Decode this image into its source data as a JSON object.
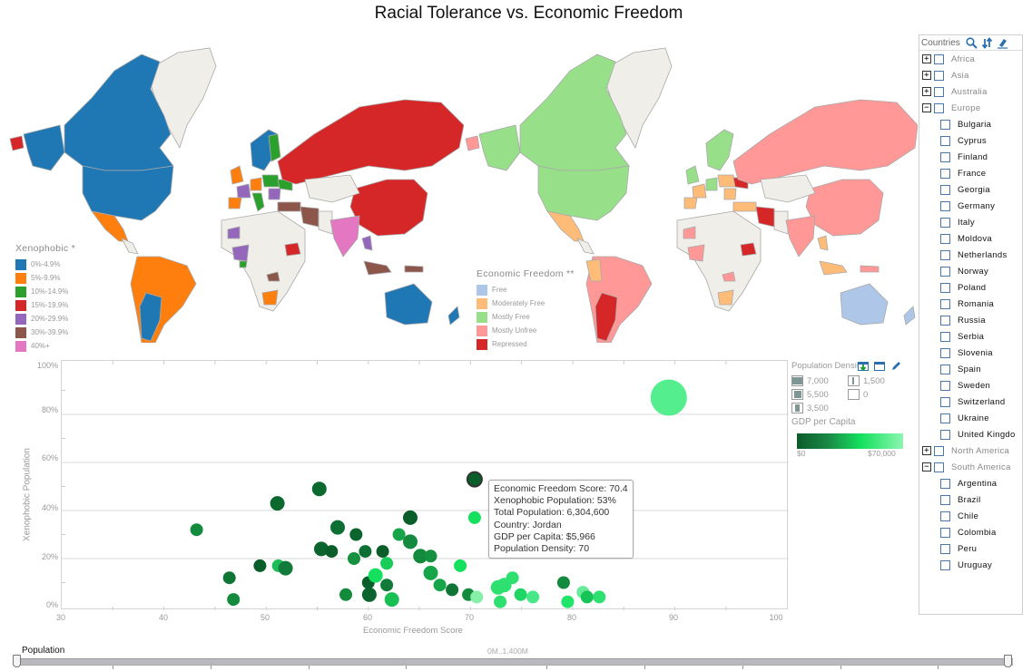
{
  "title": "Racial Tolerance vs. Economic Freedom",
  "maps": {
    "left": {
      "legend_title": "Xenophobic *",
      "legend": [
        {
          "label": "0%-4.9%",
          "color": "#1f77b4"
        },
        {
          "label": "5%-9.9%",
          "color": "#ff7f0e"
        },
        {
          "label": "10%-14.9%",
          "color": "#2ca02c"
        },
        {
          "label": "15%-19.9%",
          "color": "#d62728"
        },
        {
          "label": "20%-29.9%",
          "color": "#9467bd"
        },
        {
          "label": "30%-39.9%",
          "color": "#8c564b"
        },
        {
          "label": "40%+",
          "color": "#e377c2"
        }
      ]
    },
    "right": {
      "legend_title": "Economic Freedom **",
      "legend": [
        {
          "label": "Free",
          "color": "#aec7e8"
        },
        {
          "label": "Moderately Free",
          "color": "#ffbb78"
        },
        {
          "label": "Mostly Free",
          "color": "#98df8a"
        },
        {
          "label": "Mostly Unfree",
          "color": "#ff9896"
        },
        {
          "label": "Repressed",
          "color": "#d62728"
        }
      ]
    },
    "no_data_color": "#f0eee9",
    "border_color": "#a9a9a9"
  },
  "scatter": {
    "ylabel": "Xenophobic Population",
    "xlabel": "Economic Freedom Score",
    "yticks": [
      "100%",
      "80%",
      "60%",
      "40%",
      "20%",
      "0%"
    ],
    "xticks": [
      "30",
      "40",
      "50",
      "60",
      "70",
      "80",
      "90",
      "100"
    ]
  },
  "tooltip": {
    "lines": [
      "Economic Freedom Score: 70.4",
      "Xenophobic Population: 53%",
      "Total Population: 6,304,600",
      "Country: Jordan",
      "GDP per Capita: $5,966",
      "Population Density: 70"
    ]
  },
  "side_legend": {
    "title": "Population Density",
    "density_items": [
      {
        "label": "7,000",
        "fill": 0.9
      },
      {
        "label": "5,500",
        "fill": 0.7
      },
      {
        "label": "3,500",
        "fill": 0.45
      },
      {
        "label": "1,500",
        "fill": 0.25
      },
      {
        "label": "0",
        "fill": 0.08
      }
    ],
    "gdp_title": "GDP per Capita",
    "gdp_min": "$0",
    "gdp_max": "$70,000"
  },
  "panel": {
    "title": "Countries",
    "groups": [
      {
        "label": "Africa",
        "expanded": false,
        "children": []
      },
      {
        "label": "Asia",
        "expanded": false,
        "children": []
      },
      {
        "label": "Australia",
        "expanded": false,
        "children": []
      },
      {
        "label": "Europe",
        "expanded": true,
        "children": [
          "Bulgaria",
          "Cyprus",
          "Finland",
          "France",
          "Georgia",
          "Germany",
          "Italy",
          "Moldova",
          "Netherlands",
          "Norway",
          "Poland",
          "Romania",
          "Russia",
          "Serbia",
          "Slovenia",
          "Spain",
          "Sweden",
          "Switzerland",
          "Ukraine",
          "United Kingdo"
        ]
      },
      {
        "label": "North America",
        "expanded": false,
        "children": []
      },
      {
        "label": "South America",
        "expanded": true,
        "children": [
          "Argentina",
          "Brazil",
          "Chile",
          "Colombia",
          "Peru",
          "Uruguay"
        ]
      }
    ]
  },
  "slider": {
    "label": "Population",
    "range_text": "0M..1,400M"
  },
  "chart_data": [
    {
      "type": "scatter",
      "title": "Racial Tolerance vs. Economic Freedom",
      "xlabel": "Economic Freedom Score",
      "ylabel": "Xenophobic Population",
      "xlim": [
        30,
        100
      ],
      "ylim": [
        0,
        100
      ],
      "grid": true,
      "size_encoding": "Population Density",
      "color_encoding": "GDP per Capita ($0 dark green to $70,000 light green)",
      "highlighted_point": {
        "country": "Jordan",
        "x": 70.4,
        "y": 53,
        "total_population": 6304600,
        "gdp_per_capita": 5966,
        "population_density": 70
      },
      "points": [
        {
          "x": 43.2,
          "y": 32,
          "c": "#148a3f",
          "r": 7
        },
        {
          "x": 46.4,
          "y": 12,
          "c": "#0f7535",
          "r": 7
        },
        {
          "x": 46.8,
          "y": 3,
          "c": "#138a3c",
          "r": 7
        },
        {
          "x": 49.4,
          "y": 17,
          "c": "#0a5e2a",
          "r": 7
        },
        {
          "x": 51.1,
          "y": 43,
          "c": "#0b682e",
          "r": 8
        },
        {
          "x": 51.2,
          "y": 17,
          "c": "#1fbd5a",
          "r": 7
        },
        {
          "x": 51.9,
          "y": 16,
          "c": "#127a3a",
          "r": 8
        },
        {
          "x": 55.2,
          "y": 49,
          "c": "#0b682e",
          "r": 8
        },
        {
          "x": 55.4,
          "y": 24,
          "c": "#0b632d",
          "r": 8
        },
        {
          "x": 56.4,
          "y": 23,
          "c": "#0a5e2a",
          "r": 7
        },
        {
          "x": 57.0,
          "y": 33,
          "c": "#0d6f33",
          "r": 8
        },
        {
          "x": 57.8,
          "y": 5,
          "c": "#138a3c",
          "r": 7
        },
        {
          "x": 58.6,
          "y": 20,
          "c": "#15913f",
          "r": 7
        },
        {
          "x": 58.8,
          "y": 30,
          "c": "#0b632d",
          "r": 7
        },
        {
          "x": 59.7,
          "y": 23,
          "c": "#0d6f33",
          "r": 7
        },
        {
          "x": 60.0,
          "y": 10,
          "c": "#0a5e2a",
          "r": 7
        },
        {
          "x": 60.1,
          "y": 5,
          "c": "#0b632d",
          "r": 8
        },
        {
          "x": 60.7,
          "y": 13,
          "c": "#14e05e",
          "r": 8
        },
        {
          "x": 61.4,
          "y": 23,
          "c": "#0a5e2a",
          "r": 7
        },
        {
          "x": 61.8,
          "y": 18,
          "c": "#18cc5a",
          "r": 7
        },
        {
          "x": 61.8,
          "y": 9,
          "c": "#117a38",
          "r": 7
        },
        {
          "x": 62.3,
          "y": 3,
          "c": "#18c054",
          "r": 8
        },
        {
          "x": 63.0,
          "y": 30,
          "c": "#16a548",
          "r": 7
        },
        {
          "x": 64.1,
          "y": 37,
          "c": "#0a5e2a",
          "r": 8
        },
        {
          "x": 64.1,
          "y": 27,
          "c": "#148a3f",
          "r": 8
        },
        {
          "x": 65.1,
          "y": 21,
          "c": "#138a3c",
          "r": 8
        },
        {
          "x": 66.1,
          "y": 21,
          "c": "#15913f",
          "r": 7
        },
        {
          "x": 66.1,
          "y": 14,
          "c": "#16a548",
          "r": 8
        },
        {
          "x": 67.0,
          "y": 9,
          "c": "#16a548",
          "r": 7
        },
        {
          "x": 68.2,
          "y": 7,
          "c": "#0f7535",
          "r": 7
        },
        {
          "x": 69.0,
          "y": 17,
          "c": "#14e05e",
          "r": 7
        },
        {
          "x": 69.8,
          "y": 5,
          "c": "#138a3c",
          "r": 7
        },
        {
          "x": 70.4,
          "y": 53,
          "c": "#0a5e2a",
          "r": 8
        },
        {
          "x": 70.4,
          "y": 37,
          "c": "#14e05e",
          "r": 7
        },
        {
          "x": 70.6,
          "y": 4,
          "c": "#86f0a8",
          "r": 7
        },
        {
          "x": 72.7,
          "y": 8,
          "c": "#2de070",
          "r": 8
        },
        {
          "x": 72.9,
          "y": 2,
          "c": "#2de070",
          "r": 7
        },
        {
          "x": 73.3,
          "y": 9,
          "c": "#2de070",
          "r": 8
        },
        {
          "x": 74.1,
          "y": 12,
          "c": "#2de070",
          "r": 7
        },
        {
          "x": 74.9,
          "y": 5,
          "c": "#1fd566",
          "r": 7
        },
        {
          "x": 76.1,
          "y": 4,
          "c": "#48e888",
          "r": 7
        },
        {
          "x": 79.1,
          "y": 10,
          "c": "#148a3f",
          "r": 7
        },
        {
          "x": 79.5,
          "y": 2,
          "c": "#1fe56a",
          "r": 7
        },
        {
          "x": 81.0,
          "y": 6,
          "c": "#66ec98",
          "r": 7
        },
        {
          "x": 81.4,
          "y": 4,
          "c": "#16c458",
          "r": 7
        },
        {
          "x": 82.6,
          "y": 4,
          "c": "#2de070",
          "r": 7
        },
        {
          "x": 89.4,
          "y": 87,
          "c": "#55ee8f",
          "r": 20
        }
      ]
    }
  ]
}
